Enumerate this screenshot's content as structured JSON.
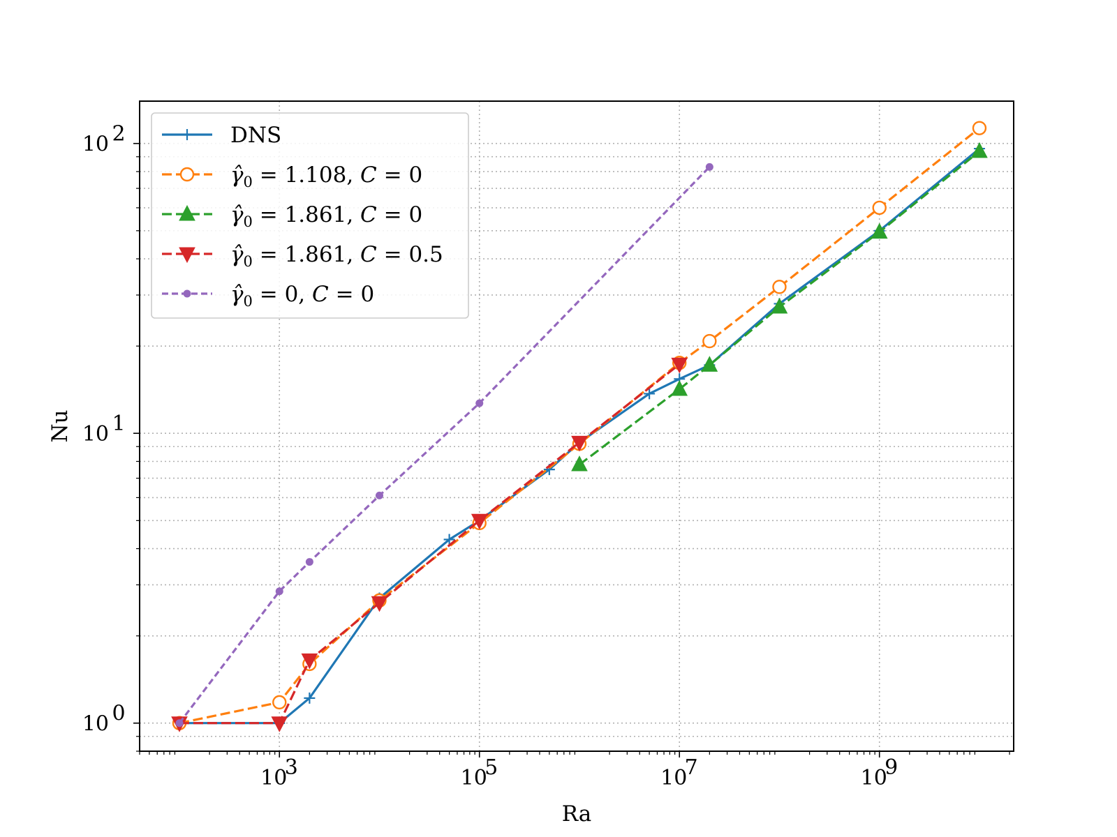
{
  "chart_data": {
    "type": "line",
    "xlabel": "Ra",
    "ylabel": "Nu",
    "x_scale": "log",
    "y_scale": "log",
    "xlim": [
      40,
      22000000000.0
    ],
    "ylim": [
      0.8,
      140
    ],
    "x_ticks": [
      {
        "value": 1000,
        "base": "10",
        "exp": "3"
      },
      {
        "value": 100000,
        "base": "10",
        "exp": "5"
      },
      {
        "value": 10000000,
        "base": "10",
        "exp": "7"
      },
      {
        "value": 1000000000,
        "base": "10",
        "exp": "9"
      }
    ],
    "y_ticks": [
      {
        "value": 1,
        "base": "10",
        "exp": "0"
      },
      {
        "value": 10,
        "base": "10",
        "exp": "1"
      },
      {
        "value": 100,
        "base": "10",
        "exp": "2"
      }
    ],
    "grid": true,
    "legend_position": "upper-left",
    "series": [
      {
        "name": "DNS",
        "legend_parts": [
          "DNS"
        ],
        "color": "#1f77b4",
        "marker": "plus",
        "dash": "solid",
        "points": [
          [
            100,
            1.0
          ],
          [
            1000,
            1.0
          ],
          [
            2000,
            1.22
          ],
          [
            10000,
            2.7
          ],
          [
            50000,
            4.3
          ],
          [
            100000,
            5.0
          ],
          [
            500000,
            7.5
          ],
          [
            1000000,
            9.3
          ],
          [
            5000000,
            13.7
          ],
          [
            10000000,
            15.4
          ],
          [
            20000000,
            17.2
          ],
          [
            100000000,
            28.0
          ],
          [
            1000000000,
            50.0
          ],
          [
            10000000000,
            96.0
          ]
        ]
      },
      {
        "name": "γ̂0 = 1.108, C = 0",
        "legend_parts": [
          "γ̂",
          "0",
          " = 1.108, ",
          "C",
          " = 0"
        ],
        "color": "#ff7f0e",
        "marker": "circle-open",
        "dash": "dashed",
        "points": [
          [
            100,
            1.0
          ],
          [
            1000,
            1.18
          ],
          [
            2000,
            1.6
          ],
          [
            10000,
            2.65
          ],
          [
            100000,
            4.9
          ],
          [
            1000000,
            9.2
          ],
          [
            10000000,
            17.5
          ],
          [
            20000000,
            20.8
          ],
          [
            100000000,
            32.0
          ],
          [
            1000000000,
            60.0
          ],
          [
            10000000000,
            113.0
          ]
        ]
      },
      {
        "name": "γ̂0 = 1.861, C = 0",
        "legend_parts": [
          "γ̂",
          "0",
          " = 1.861, ",
          "C",
          " = 0"
        ],
        "color": "#2ca02c",
        "marker": "triangle-up",
        "dash": "dashed",
        "points": [
          [
            1000000,
            7.8
          ],
          [
            10000000,
            14.2
          ],
          [
            20000000,
            17.2
          ],
          [
            100000000,
            27.3
          ],
          [
            1000000000,
            49.5
          ],
          [
            10000000000,
            94.0
          ]
        ]
      },
      {
        "name": "γ̂0 = 1.861, C = 0.5",
        "legend_parts": [
          "γ̂",
          "0",
          " = 1.861, ",
          "C",
          " = 0.5"
        ],
        "color": "#d62728",
        "marker": "triangle-down",
        "dash": "dashed",
        "points": [
          [
            100,
            1.0
          ],
          [
            1000,
            1.0
          ],
          [
            2000,
            1.65
          ],
          [
            10000,
            2.6
          ],
          [
            100000,
            5.0
          ],
          [
            1000000,
            9.3
          ],
          [
            10000000,
            17.3
          ]
        ]
      },
      {
        "name": "γ̂0 = 0, C = 0",
        "legend_parts": [
          "γ̂",
          "0",
          " = 0, ",
          "C",
          " = 0"
        ],
        "color": "#9467bd",
        "marker": "point",
        "dash": "dashed-short",
        "points": [
          [
            100,
            1.0
          ],
          [
            1000,
            2.85
          ],
          [
            2000,
            3.6
          ],
          [
            10000,
            6.1
          ],
          [
            100000,
            12.7
          ],
          [
            20000000,
            83.0
          ]
        ]
      }
    ]
  }
}
